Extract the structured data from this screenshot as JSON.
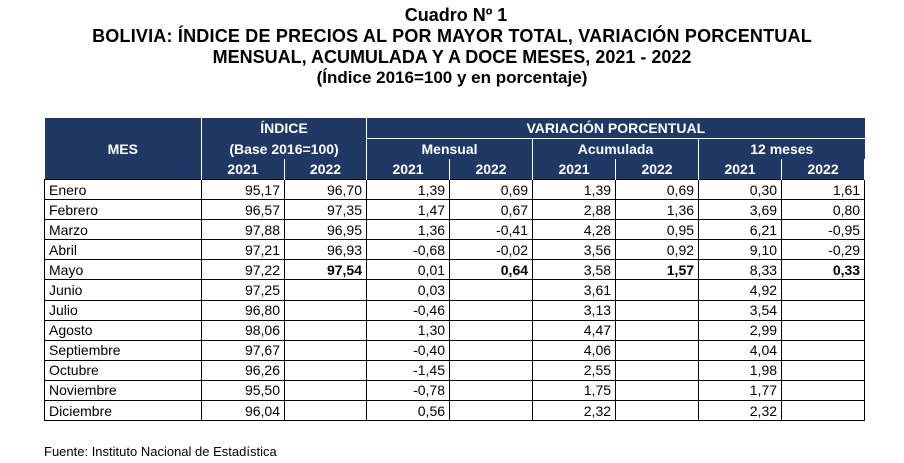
{
  "title": {
    "line1": "Cuadro Nº 1",
    "line2": "BOLIVIA: ÍNDICE DE PRECIOS AL POR MAYOR TOTAL, VARIACIÓN PORCENTUAL",
    "line3": "MENSUAL, ACUMULADA Y A DOCE MESES, 2021 - 2022",
    "line4": "(Índice 2016=100 y en porcentaje)"
  },
  "table": {
    "headers": {
      "mes": "MES",
      "indice": "ÍNDICE",
      "indice_base": "(Base 2016=100)",
      "variacion": "VARIACIÓN PORCENTUAL",
      "mensual": "Mensual",
      "acumulada": "Acumulada",
      "doce_meses": "12 meses",
      "years": [
        "2021",
        "2022",
        "2021",
        "2022",
        "2021",
        "2022",
        "2021",
        "2022"
      ]
    },
    "rows": [
      {
        "mes": "Enero",
        "v": [
          "95,17",
          "96,70",
          "1,39",
          "0,69",
          "1,39",
          "0,69",
          "0,30",
          "1,61"
        ]
      },
      {
        "mes": "Febrero",
        "v": [
          "96,57",
          "97,35",
          "1,47",
          "0,67",
          "2,88",
          "1,36",
          "3,69",
          "0,80"
        ]
      },
      {
        "mes": "Marzo",
        "v": [
          "97,88",
          "96,95",
          "1,36",
          "-0,41",
          "4,28",
          "0,95",
          "6,21",
          "-0,95"
        ]
      },
      {
        "mes": "Abril",
        "v": [
          "97,21",
          "96,93",
          "-0,68",
          "-0,02",
          "3,56",
          "0,92",
          "9,10",
          "-0,29"
        ]
      },
      {
        "mes": "Mayo",
        "v": [
          "97,22",
          "97,54",
          "0,01",
          "0,64",
          "3,58",
          "1,57",
          "8,33",
          "0,33"
        ]
      },
      {
        "mes": "Junio",
        "v": [
          "97,25",
          "",
          "0,03",
          "",
          "3,61",
          "",
          "4,92",
          ""
        ]
      },
      {
        "mes": "Julio",
        "v": [
          "96,80",
          "",
          "-0,46",
          "",
          "3,13",
          "",
          "3,54",
          ""
        ]
      },
      {
        "mes": "Agosto",
        "v": [
          "98,06",
          "",
          "1,30",
          "",
          "4,47",
          "",
          "2,99",
          ""
        ]
      },
      {
        "mes": "Septiembre",
        "v": [
          "97,67",
          "",
          "-0,40",
          "",
          "4,06",
          "",
          "4,04",
          ""
        ]
      },
      {
        "mes": "Octubre",
        "v": [
          "96,26",
          "",
          "-1,45",
          "",
          "2,55",
          "",
          "1,98",
          ""
        ]
      },
      {
        "mes": "Noviembre",
        "v": [
          "95,50",
          "",
          "-0,78",
          "",
          "1,75",
          "",
          "1,77",
          ""
        ]
      },
      {
        "mes": "Diciembre",
        "v": [
          "96,04",
          "",
          "0,56",
          "",
          "2,32",
          "",
          "2,32",
          ""
        ]
      }
    ],
    "bold_row": "Mayo"
  },
  "source": "Fuente: Instituto Nacional de Estadística",
  "colors": {
    "header_bg": "#1f3864",
    "header_text": "#ffffff"
  }
}
